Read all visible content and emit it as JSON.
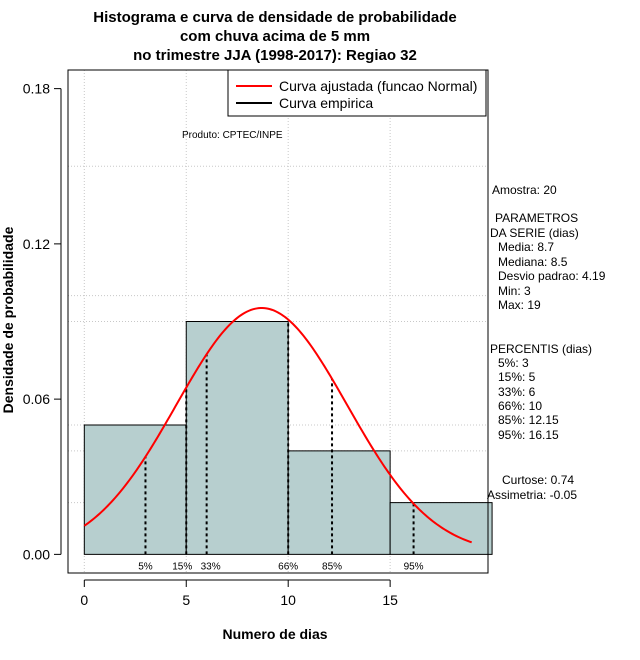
{
  "chart_data": {
    "type": "bar",
    "title_lines": [
      "Histograma e curva de densidade de probabilidade",
      "com chuva acima de 5 mm",
      "no trimestre JJA (1998-2017): Regiao 32"
    ],
    "xlabel": "Numero de dias",
    "ylabel": "Densidade de probabilidade",
    "xlim": [
      -0.8,
      19.8
    ],
    "ylim": [
      -0.0072,
      0.1872
    ],
    "x_ticks": [
      "0",
      "5",
      "10",
      "15"
    ],
    "y_ticks": [
      "0.00",
      "0.06",
      "0.12",
      "0.18"
    ],
    "x_tick_values": [
      0,
      5,
      10,
      15
    ],
    "y_tick_values": [
      0.0,
      0.06,
      0.12,
      0.18
    ],
    "bins": [
      {
        "from": 0,
        "to": 5,
        "density": 0.05
      },
      {
        "from": 5,
        "to": 10,
        "density": 0.09
      },
      {
        "from": 10,
        "to": 15,
        "density": 0.04
      },
      {
        "from": 15,
        "to": 20,
        "density": 0.02
      }
    ],
    "bar_color": "#b7cfcf",
    "curve_color": "#ff0000",
    "normal_curve": {
      "mean": 8.7,
      "sd": 4.19,
      "x_from": 0,
      "x_to": 19
    },
    "percentile_lines": [
      {
        "label": "5%",
        "x": 3
      },
      {
        "label": "15%",
        "x": 5
      },
      {
        "label": "33%",
        "x": 6
      },
      {
        "label": "66%",
        "x": 10
      },
      {
        "label": "85%",
        "x": 12.15
      },
      {
        "label": "95%",
        "x": 16.15
      }
    ],
    "grid": true,
    "legend_position": "top-right",
    "legend": [
      {
        "label": "Curva ajustada (funcao Normal)",
        "color": "#ff0000"
      },
      {
        "label": "Curva empirica",
        "color": "#000000"
      }
    ],
    "product_label": "Produto: CPTEC/INPE",
    "side_panel": {
      "amostra": "Amostra: 20",
      "parametros_title": [
        "PARAMETROS",
        "DA SERIE (dias)"
      ],
      "parametros": [
        "Media: 8.7",
        "Mediana: 8.5",
        "Desvio padrao: 4.19",
        "Min: 3",
        "Max: 19"
      ],
      "percentis_title": "PERCENTIS (dias)",
      "percentis": [
        "5%: 3",
        "15%: 5",
        "33%: 6",
        "66%: 10",
        "85%: 12.15",
        "95%: 16.15"
      ],
      "curtose": "Curtose: 0.74",
      "assimetria": "Assimetria: -0.05"
    }
  }
}
